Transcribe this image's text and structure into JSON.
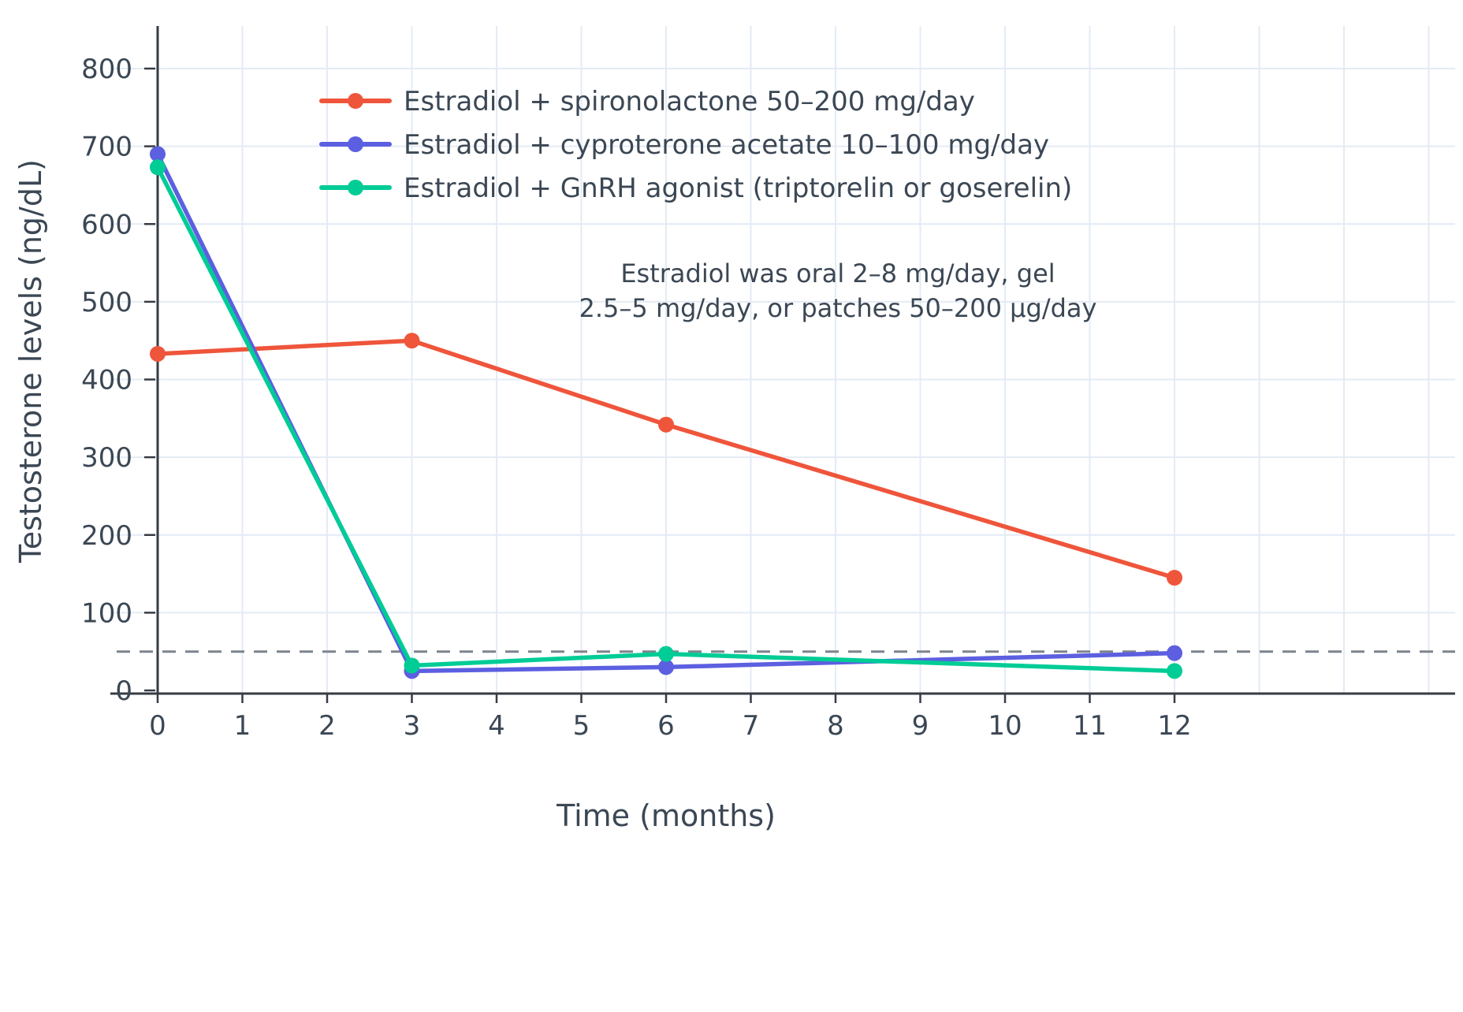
{
  "chart_data": {
    "type": "line",
    "title": "",
    "xlabel": "Time (months)",
    "ylabel": "Testosterone levels (ng/dL)",
    "x": [
      0,
      3,
      6,
      12
    ],
    "x_ticks": [
      0,
      1,
      2,
      3,
      4,
      5,
      6,
      7,
      8,
      9,
      10,
      11,
      12
    ],
    "y_ticks": [
      0,
      100,
      200,
      300,
      400,
      500,
      600,
      700,
      800
    ],
    "xlim": [
      -0.55,
      15.3
    ],
    "ylim": [
      -5,
      855
    ],
    "grid": true,
    "legend_position": "top-left-inside",
    "series": [
      {
        "name": "Estradiol + spironolactone 50–200 mg/day",
        "color": "#EF553B",
        "values": [
          433,
          450,
          342,
          145
        ]
      },
      {
        "name": "Estradiol + cyproterone acetate 10–100 mg/day",
        "color": "#5C5FE0",
        "values": [
          690,
          25,
          30,
          48
        ]
      },
      {
        "name": "Estradiol + GnRH agonist (triptorelin or goserelin)",
        "color": "#00CC96",
        "values": [
          673,
          32,
          47,
          25
        ]
      }
    ],
    "reference_line": {
      "y": 50,
      "style": "dashed",
      "color": "#7d848e"
    },
    "annotation": {
      "lines": [
        "Estradiol was oral 2–8 mg/day, gel",
        "2.5–5 mg/day, or patches 50–200 µg/day"
      ]
    },
    "colors": {
      "grid": "#e4ebf5",
      "axis": "#363c44",
      "text": "#3b4754",
      "background": "#ffffff"
    }
  }
}
